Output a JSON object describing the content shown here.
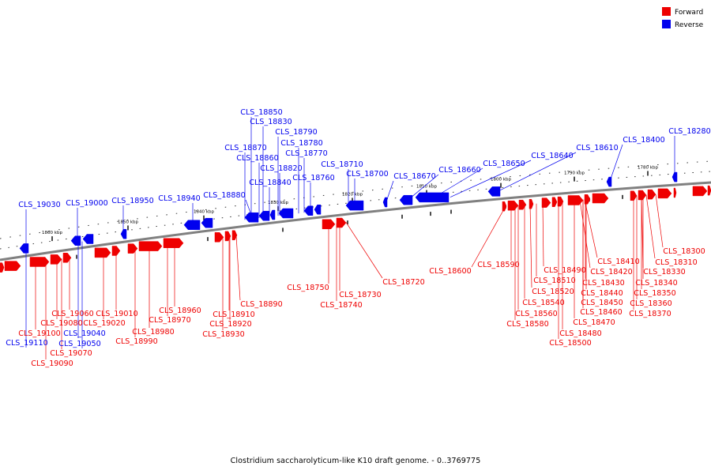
{
  "legend": {
    "forward_label": "Forward",
    "reverse_label": "Reverse",
    "forward_color": "#ee0000",
    "reverse_color": "#0000ee"
  },
  "caption": "Clostridium saccharolyticum-like K10 draft genome. - 0..3769775",
  "axis": {
    "ticks": [
      "1860 kbp",
      "1850 kbp",
      "1840 kbp",
      "1830 kbp",
      "1820 kbp",
      "1810 kbp",
      "1800 kbp",
      "1790 kbp",
      "1780 kbp"
    ],
    "backbone_color": "#808080"
  },
  "reverse_genes": [
    "CLS_18850",
    "CLS_18830",
    "CLS_18790",
    "CLS_18780",
    "CLS_18870",
    "CLS_18770",
    "CLS_18860",
    "CLS_18820",
    "CLS_18840",
    "CLS_18760",
    "CLS_18710",
    "CLS_18700",
    "CLS_18670",
    "CLS_18660",
    "CLS_18650",
    "CLS_18640",
    "CLS_18610",
    "CLS_18400",
    "CLS_18280",
    "CLS_19030",
    "CLS_19000",
    "CLS_18950",
    "CLS_18940",
    "CLS_18880",
    "CLS_19110",
    "CLS_19050",
    "CLS_19040"
  ],
  "forward_genes": [
    "CLS_19060",
    "CLS_19010",
    "CLS_19080",
    "CLS_19020",
    "CLS_19100",
    "CLS_19070",
    "CLS_19090",
    "CLS_18960",
    "CLS_18970",
    "CLS_18980",
    "CLS_18990",
    "CLS_18890",
    "CLS_18910",
    "CLS_18920",
    "CLS_18930",
    "CLS_18720",
    "CLS_18750",
    "CLS_18730",
    "CLS_18740",
    "CLS_18600",
    "CLS_18590",
    "CLS_18490",
    "CLS_18510",
    "CLS_18520",
    "CLS_18540",
    "CLS_18560",
    "CLS_18580",
    "CLS_18410",
    "CLS_18420",
    "CLS_18430",
    "CLS_18440",
    "CLS_18450",
    "CLS_18460",
    "CLS_18470",
    "CLS_18480",
    "CLS_18500",
    "CLS_18300",
    "CLS_18310",
    "CLS_18330",
    "CLS_18340",
    "CLS_18350",
    "CLS_18360",
    "CLS_18370"
  ]
}
